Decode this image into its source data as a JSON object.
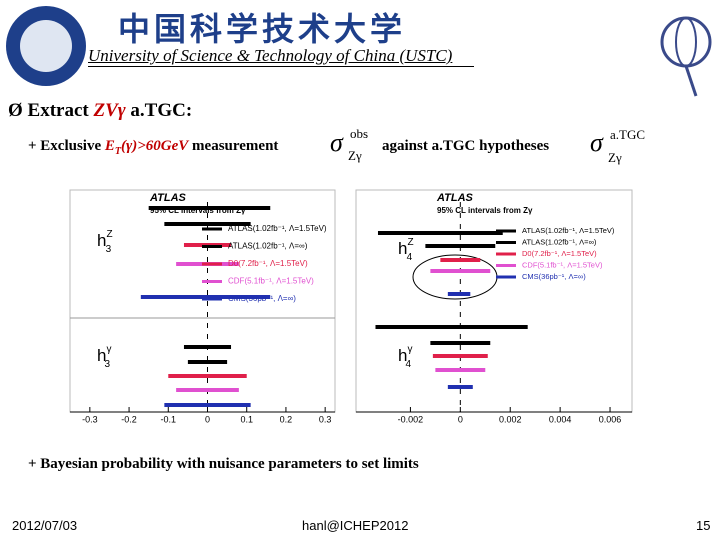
{
  "header": {
    "title": "中国科学技术大学",
    "subtitle": "University of Science & Technology of China (USTC)"
  },
  "bullet": {
    "marker": "Ø",
    "prefix": "Extract",
    "highlight": "ZVγ",
    "suffix": "a.TGC:"
  },
  "line1": {
    "prefix": "+ Exclusive",
    "cut": "E",
    "cut_sub": "T",
    "cut_rest": "(γ)>60GeV",
    "middle": "measurement",
    "sigma1": {
      "symbol": "σ",
      "sup": "obs",
      "sub": "Zγ"
    },
    "against": "against  a.TGC  hypotheses",
    "sigma2": {
      "symbol": "σ",
      "sup": "a.TGC",
      "sub": "Zγ"
    }
  },
  "plots": [
    {
      "atlas": "ATLAS",
      "cl": "95% CL intervals from Zγ",
      "xlim": [
        -0.32,
        0.32
      ],
      "xticks": [
        -0.3,
        -0.2,
        -0.1,
        0,
        0.1,
        0.2,
        0.3
      ],
      "groups": [
        {
          "h": "h",
          "sub": "3",
          "sup": "Z"
        },
        {
          "h": "h",
          "sub": "3",
          "sup": "γ"
        }
      ],
      "series": [
        {
          "name": "ATLAS(1.02fb⁻¹, Λ=1.5TeV)",
          "color": "#000000",
          "low": [
            -0.15,
            -0.06
          ],
          "high": [
            0.16,
            0.06
          ]
        },
        {
          "name": "ATLAS(1.02fb⁻¹, Λ=∞)",
          "color": "#000000",
          "low": [
            -0.11,
            -0.05
          ],
          "high": [
            0.11,
            0.05
          ]
        },
        {
          "name": "D0(7.2fb⁻¹, Λ=1.5TeV)",
          "color": "#e0204a",
          "low": [
            -0.06,
            -0.1
          ],
          "high": [
            0.06,
            0.1
          ]
        },
        {
          "name": "CDF(5.1fb⁻¹, Λ=1.5TeV)",
          "color": "#e050d0",
          "low": [
            -0.08,
            -0.08
          ],
          "high": [
            0.08,
            0.08
          ]
        },
        {
          "name": "CMS(36pb⁻¹, Λ=∞)",
          "color": "#2030b0",
          "low": [
            -0.17,
            -0.11
          ],
          "high": [
            0.16,
            0.11
          ]
        }
      ]
    },
    {
      "atlas": "ATLAS",
      "cl": "95% CL intervals from Zγ",
      "xlim": [
        -0.0037,
        0.0068
      ],
      "xticks": [
        -0.002,
        0,
        0.002,
        0.004,
        0.006
      ],
      "groups": [
        {
          "h": "h",
          "sub": "4",
          "sup": "Z"
        },
        {
          "h": "h",
          "sub": "4",
          "sup": "γ"
        }
      ],
      "series": [
        {
          "name": "ATLAS(1.02fb⁻¹, Λ=1.5TeV)",
          "color": "#000000",
          "low": [
            -0.0033,
            -0.0034
          ],
          "high": [
            0.0017,
            0.0027
          ]
        },
        {
          "name": "ATLAS(1.02fb⁻¹, Λ=∞)",
          "color": "#000000",
          "low": [
            -0.0014,
            -0.0012
          ],
          "high": [
            0.0014,
            0.0012
          ]
        },
        {
          "name": "D0(7.2fb⁻¹, Λ=1.5TeV)",
          "color": "#e0204a",
          "low": [
            -0.0008,
            -0.0011
          ],
          "high": [
            0.0008,
            0.0011
          ]
        },
        {
          "name": "CDF(5.1fb⁻¹, Λ=1.5TeV)",
          "color": "#e050d0",
          "low": [
            -0.0012,
            -0.001
          ],
          "high": [
            0.0012,
            0.001
          ]
        },
        {
          "name": "CMS(36pb⁻¹, Λ=∞)",
          "color": "#2030b0",
          "low": [
            -0.0005,
            -0.0005
          ],
          "high": [
            0.0004,
            0.0005
          ]
        }
      ]
    }
  ],
  "line2": "+ Bayesian probability with nuisance parameters to set limits",
  "footer": {
    "date": "2012/07/03",
    "author": "hanl@ICHEP2012",
    "page": "15"
  }
}
